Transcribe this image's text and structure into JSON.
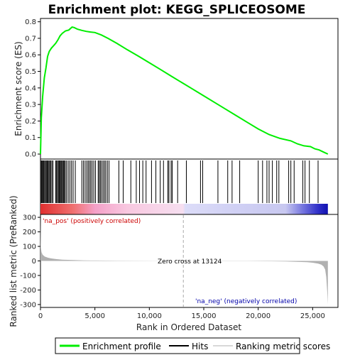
{
  "title": "Enrichment plot: KEGG_SPLICEOSOME",
  "colors": {
    "es_line": "#00ee00",
    "hits": "#000000",
    "metric": "#b0b0b0",
    "pos_label": "#cc0000",
    "neg_label": "#0000aa",
    "zero_line": "#aaaaaa",
    "frame": "#000000"
  },
  "chart_data": [
    {
      "type": "line",
      "name": "enrichment-profile",
      "ylabel": "Enrichment score (ES)",
      "xlim": [
        0,
        27000
      ],
      "ylim": [
        -0.03,
        0.82
      ],
      "yticks": [
        0.0,
        0.1,
        0.2,
        0.3,
        0.4,
        0.5,
        0.6,
        0.7,
        0.8
      ],
      "ytick_labels": [
        "0.0",
        "0.1",
        "0.2",
        "0.3",
        "0.4",
        "0.5",
        "0.6",
        "0.7",
        "0.8"
      ],
      "grid": false,
      "series": [
        {
          "x": [
            0,
            80,
            200,
            350,
            500,
            650,
            800,
            1000,
            1200,
            1400,
            1600,
            1800,
            2000,
            2300,
            2600,
            2900,
            3100,
            3400,
            3800,
            4200,
            4600,
            5000,
            5600,
            6200,
            7000,
            8000,
            9000,
            10000,
            11000,
            12000,
            13000,
            14000,
            15000,
            16000,
            17000,
            18000,
            19000,
            20000,
            21000,
            22000,
            23000,
            23600,
            24200,
            24800,
            25200,
            25600,
            26000,
            26400
          ],
          "values": [
            0.0,
            0.22,
            0.35,
            0.46,
            0.52,
            0.59,
            0.62,
            0.64,
            0.655,
            0.67,
            0.69,
            0.715,
            0.73,
            0.745,
            0.75,
            0.768,
            0.765,
            0.755,
            0.748,
            0.742,
            0.738,
            0.735,
            0.72,
            0.7,
            0.67,
            0.63,
            0.592,
            0.552,
            0.512,
            0.472,
            0.432,
            0.392,
            0.352,
            0.312,
            0.272,
            0.232,
            0.192,
            0.152,
            0.118,
            0.095,
            0.08,
            0.062,
            0.05,
            0.045,
            0.032,
            0.025,
            0.012,
            0.0
          ]
        }
      ]
    },
    {
      "type": "rug",
      "name": "hits",
      "xlim": [
        0,
        27000
      ],
      "hit_positions": [
        20,
        90,
        150,
        220,
        300,
        380,
        460,
        540,
        620,
        700,
        780,
        860,
        950,
        1050,
        1150,
        1400,
        1480,
        1560,
        1650,
        1720,
        1800,
        1880,
        1950,
        2030,
        2110,
        2190,
        2280,
        2400,
        2550,
        2700,
        2850,
        3000,
        3200,
        3800,
        3950,
        4100,
        4250,
        4380,
        4500,
        4620,
        4750,
        4900,
        5050,
        5300,
        5400,
        5500,
        5620,
        5750,
        5880,
        6000,
        6150,
        6300,
        7200,
        7600,
        8300,
        8800,
        9100,
        9400,
        9700,
        10200,
        10600,
        11000,
        11300,
        11700,
        11800,
        12000,
        12100,
        12600,
        13400,
        14700,
        14900,
        16300,
        17200,
        17600,
        18300,
        20000,
        20400,
        20800,
        21000,
        21300,
        21700,
        21900,
        22800,
        23000,
        23300,
        24100,
        24300,
        24700,
        25500
      ]
    },
    {
      "type": "heatmap",
      "name": "rank-colorbar",
      "xlim": [
        0,
        27000
      ],
      "stops": [
        {
          "x": 0,
          "color": "#e03030"
        },
        {
          "x": 3000,
          "color": "#f07070"
        },
        {
          "x": 5000,
          "color": "#f4a0c8"
        },
        {
          "x": 8000,
          "color": "#f8c8e0"
        },
        {
          "x": 13100,
          "color": "#f6dff0"
        },
        {
          "x": 13300,
          "color": "#dcdcf8"
        },
        {
          "x": 18000,
          "color": "#d0d0f4"
        },
        {
          "x": 22500,
          "color": "#c8c8f0"
        },
        {
          "x": 24000,
          "color": "#7a7ae0"
        },
        {
          "x": 25500,
          "color": "#3030c8"
        },
        {
          "x": 26400,
          "color": "#1010b0"
        }
      ]
    },
    {
      "type": "area",
      "name": "ranked-metric",
      "xlabel": "Rank in Ordered Dataset",
      "ylabel": "Ranked list metric (PreRanked)",
      "xlim": [
        0,
        27000
      ],
      "ylim": [
        -320,
        320
      ],
      "xticks": [
        0,
        5000,
        10000,
        15000,
        20000,
        25000
      ],
      "xtick_labels": [
        "0",
        "5,000",
        "10,000",
        "15,000",
        "20,000",
        "25,000"
      ],
      "yticks": [
        300,
        200,
        100,
        0,
        -100,
        -200,
        -300
      ],
      "ytick_labels": [
        "300",
        "200",
        "100",
        "0",
        "-100",
        "-200",
        "-300"
      ],
      "grid": false,
      "series": [
        {
          "x": [
            0,
            30,
            100,
            200,
            400,
            700,
            1000,
            1500,
            2000,
            3000,
            4000,
            5000,
            7000,
            9000,
            11000,
            13124,
            15000,
            17000,
            19000,
            21000,
            22500,
            23500,
            24500,
            25000,
            25500,
            25800,
            26000,
            26150,
            26250,
            26350,
            26400
          ],
          "values": [
            300,
            95,
            60,
            42,
            30,
            22,
            17,
            12,
            9,
            6,
            4,
            3,
            2,
            1.2,
            0.5,
            0,
            -0.5,
            -1,
            -1.5,
            -2.5,
            -4,
            -6,
            -9,
            -12,
            -18,
            -26,
            -38,
            -60,
            -110,
            -220,
            -300
          ]
        }
      ]
    }
  ],
  "annotations": {
    "pos_label": "'na_pos' (positively correlated)",
    "neg_label": "'na_neg' (negatively correlated)",
    "zero_cross_label": "Zero cross at 13124",
    "zero_cross_x": 13124
  },
  "legend": {
    "items": [
      {
        "label": "Enrichment profile",
        "kind": "line",
        "color": "#00ee00"
      },
      {
        "label": "Hits",
        "kind": "line",
        "color": "#000000"
      },
      {
        "label": "Ranking metric scores",
        "kind": "line",
        "color": "#b0b0b0"
      }
    ]
  }
}
